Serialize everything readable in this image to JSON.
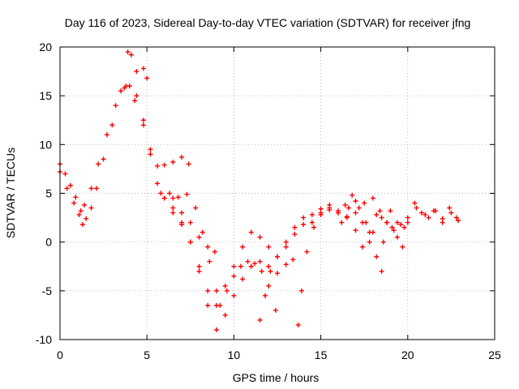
{
  "chart_data": {
    "type": "scatter",
    "title": "Day 116 of 2023, Sidereal Day-to-day VTEC variation (SDTVAR) for receiver jfng",
    "xlabel": "GPS time / hours",
    "ylabel": "SDTVAR / TECUs",
    "xlim": [
      0,
      25
    ],
    "ylim": [
      -10,
      20
    ],
    "xticks": [
      "0",
      "5",
      "10",
      "15",
      "20",
      "25"
    ],
    "yticks": [
      "-10",
      "-5",
      "0",
      "5",
      "10",
      "15",
      "20"
    ],
    "grid": true,
    "marker": "+",
    "color": "#ff0000",
    "series": [
      {
        "x": [
          0.0,
          0.3,
          0.6,
          0.9,
          1.2,
          1.5,
          1.8,
          2.1,
          2.5,
          3.0,
          3.5,
          3.9,
          4.1,
          4.4,
          4.8,
          5.0
        ],
        "y": [
          8.0,
          7.0,
          5.8,
          4.6,
          3.2,
          2.4,
          3.5,
          5.5,
          8.5,
          12.0,
          15.5,
          19.5,
          19.2,
          17.5,
          17.8,
          16.8
        ]
      },
      {
        "x": [
          0.0,
          0.4,
          0.8,
          1.1,
          1.3
        ],
        "y": [
          7.2,
          5.5,
          4.0,
          2.8,
          1.8
        ]
      },
      {
        "x": [
          1.4,
          1.8,
          2.2,
          2.7,
          3.2,
          3.7,
          4.0,
          4.4,
          4.8,
          5.2,
          5.6,
          6.0,
          6.5,
          7.0,
          7.4
        ],
        "y": [
          3.8,
          5.5,
          8.0,
          11.0,
          14.0,
          15.8,
          16.0,
          15.0,
          12.5,
          9.5,
          7.8,
          7.9,
          8.2,
          8.7,
          8.0
        ]
      },
      {
        "x": [
          3.8,
          4.3,
          4.8,
          5.2,
          5.6,
          6.0,
          6.5,
          7.0,
          7.5,
          8.0,
          8.5,
          9.0,
          9.5,
          10.0,
          10.5,
          11.0,
          11.5,
          12.0,
          12.5,
          13.0,
          13.4
        ],
        "y": [
          16.0,
          14.5,
          12.0,
          9.0,
          6.0,
          4.5,
          3.5,
          2.0,
          0.0,
          -3.0,
          -6.5,
          -9.0,
          -7.5,
          -5.5,
          -3.8,
          -2.5,
          -2.0,
          -2.5,
          -3.2,
          -2.3,
          -1.8
        ]
      },
      {
        "x": [
          5.8,
          6.3,
          6.8,
          7.3,
          7.8,
          8.2,
          8.6,
          9.0,
          9.5,
          10.0,
          10.5,
          11.0,
          11.5,
          12.0,
          12.5,
          13.0,
          13.5,
          14.0
        ],
        "y": [
          5.0,
          5.0,
          4.6,
          4.9,
          3.5,
          1.0,
          -2.0,
          -5.0,
          -4.5,
          -2.5,
          -0.5,
          1.0,
          0.5,
          -0.5,
          -1.5,
          0.0,
          1.5,
          2.5
        ]
      },
      {
        "x": [
          6.0,
          6.5,
          7.0,
          7.5,
          8.0,
          8.5,
          9.0
        ],
        "y": [
          4.5,
          3.0,
          1.8,
          0.0,
          -2.5,
          -5.0,
          -6.5
        ]
      },
      {
        "x": [
          6.5,
          7.0,
          7.5,
          8.0,
          8.5,
          8.9
        ],
        "y": [
          4.5,
          3.0,
          2.0,
          0.5,
          -0.5,
          -1.0
        ]
      },
      {
        "x": [
          9.2,
          9.6,
          10.0,
          10.4,
          10.8,
          11.2,
          11.6,
          12.0,
          12.4
        ],
        "y": [
          -6.5,
          -5.0,
          -3.5,
          -2.5,
          -2.0,
          -2.2,
          -3.0,
          -4.5,
          -7.0
        ]
      },
      {
        "x": [
          11.5,
          11.8,
          12.1,
          12.5,
          13.0,
          13.5,
          14.0,
          14.5,
          15.0,
          15.5,
          16.0,
          16.5,
          17.0,
          17.5,
          18.0
        ],
        "y": [
          -8.0,
          -5.5,
          -3.0,
          -1.5,
          -0.5,
          0.8,
          1.8,
          2.8,
          3.4,
          3.5,
          3.0,
          2.5,
          3.0,
          4.0,
          4.5
        ]
      },
      {
        "x": [
          13.7,
          13.9,
          14.2,
          14.6,
          15.0,
          15.5,
          16.0,
          16.4,
          16.8,
          17.2,
          17.6,
          18.0,
          18.4,
          18.8,
          19.2,
          19.6,
          20.0,
          20.5,
          21.0,
          21.5,
          22.0,
          22.5,
          22.9
        ],
        "y": [
          -8.5,
          -5.0,
          -1.0,
          1.5,
          2.8,
          3.3,
          3.0,
          3.8,
          4.8,
          3.5,
          2.0,
          1.0,
          3.2,
          2.0,
          1.2,
          1.8,
          2.5,
          3.5,
          2.8,
          3.2,
          2.4,
          3.0,
          2.2
        ]
      },
      {
        "x": [
          14.5,
          15.0,
          15.5,
          16.0,
          16.5,
          17.0,
          17.4,
          17.8,
          18.2,
          18.6,
          19.0,
          19.4,
          19.8
        ],
        "y": [
          2.0,
          3.0,
          3.8,
          3.2,
          2.6,
          1.2,
          -0.5,
          1.0,
          2.8,
          0.0,
          3.2,
          2.0,
          1.5
        ]
      },
      {
        "x": [
          16.2,
          16.6,
          17.0,
          17.4,
          17.8,
          18.2,
          18.5
        ],
        "y": [
          2.0,
          3.5,
          4.2,
          2.0,
          0.0,
          -1.5,
          -3.0
        ]
      },
      {
        "x": [
          18.5,
          18.8,
          19.1,
          19.4,
          19.7
        ],
        "y": [
          2.5,
          2.0,
          1.5,
          0.5,
          -0.5
        ]
      },
      {
        "x": [
          20.0,
          20.4,
          20.8,
          21.2,
          21.6,
          22.0,
          22.4,
          22.8
        ],
        "y": [
          2.0,
          4.0,
          3.0,
          2.5,
          3.2,
          2.0,
          3.5,
          2.5
        ]
      }
    ]
  }
}
